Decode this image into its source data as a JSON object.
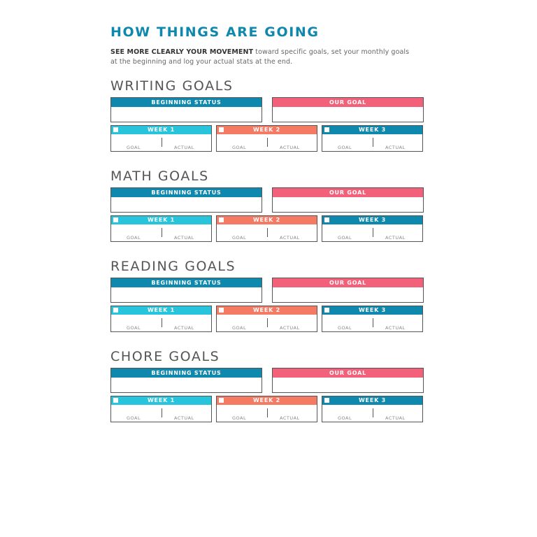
{
  "header": {
    "title": "HOW THINGS ARE GOING",
    "intro_bold": "SEE MORE CLEARLY YOUR MOVEMENT",
    "intro_rest_line1": " toward specific goals, set your monthly goals",
    "intro_line2": "at the beginning and log your actual stats at the end."
  },
  "labels": {
    "beginning_status": "BEGINNING STATUS",
    "our_goal": "OUR GOAL",
    "week1": "WEEK 1",
    "week2": "WEEK 2",
    "week3": "WEEK 3",
    "goal": "GOAL",
    "actual": "ACTUAL"
  },
  "sections": [
    {
      "title": "WRITING GOALS"
    },
    {
      "title": "MATH GOALS"
    },
    {
      "title": "READING GOALS"
    },
    {
      "title": "CHORE GOALS"
    }
  ],
  "colors": {
    "teal_dark": "#0f88ad",
    "teal_light": "#27c4dc",
    "coral": "#f47a64",
    "pink": "#f2607a"
  }
}
